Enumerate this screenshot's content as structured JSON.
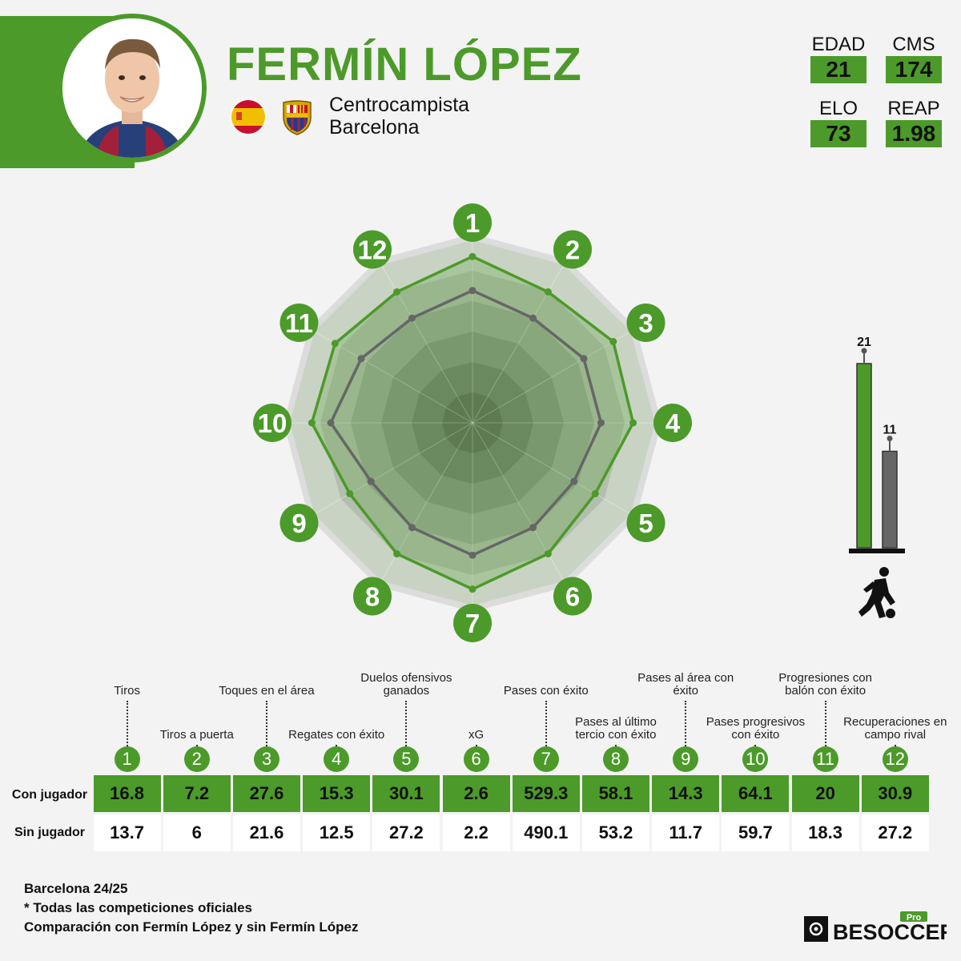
{
  "player": {
    "name": "FERMÍN LÓPEZ",
    "position": "Centrocampista",
    "club": "Barcelona"
  },
  "stats": [
    {
      "label": "EDAD",
      "value": "21"
    },
    {
      "label": "CMS",
      "value": "174"
    },
    {
      "label": "ELO",
      "value": "73"
    },
    {
      "label": "REAP",
      "value": "1.98"
    }
  ],
  "icons": {
    "flag": "spain-flag-icon",
    "crest": "barcelona-crest-icon",
    "player": "footballer-icon",
    "logo": "besoccer-pro-logo"
  },
  "colors": {
    "accent": "#4c9a2a",
    "with_player": "#4c9a2a",
    "without_player": "#666666"
  },
  "chart_data": [
    {
      "type": "radar",
      "axes": [
        "1",
        "2",
        "3",
        "4",
        "5",
        "6",
        "7",
        "8",
        "9",
        "10",
        "11",
        "12"
      ],
      "series": [
        {
          "name": "Con jugador",
          "values": [
            0.88,
            0.8,
            0.86,
            0.85,
            0.75,
            0.8,
            0.88,
            0.8,
            0.75,
            0.85,
            0.84,
            0.8
          ]
        },
        {
          "name": "Sin jugador",
          "values": [
            0.7,
            0.64,
            0.68,
            0.68,
            0.62,
            0.64,
            0.7,
            0.64,
            0.62,
            0.75,
            0.68,
            0.64
          ]
        }
      ],
      "rlim": [
        0,
        1
      ]
    },
    {
      "type": "bar",
      "categories": [
        "Con jugador",
        "Sin jugador"
      ],
      "values": [
        21,
        11
      ],
      "ylim": [
        0,
        21
      ]
    },
    {
      "type": "table",
      "columns": [
        {
          "num": "1",
          "label": "Tiros",
          "with": "16.8",
          "without": "13.7"
        },
        {
          "num": "2",
          "label": "Tiros a puerta",
          "with": "7.2",
          "without": "6"
        },
        {
          "num": "3",
          "label": "Toques en el área",
          "with": "27.6",
          "without": "21.6"
        },
        {
          "num": "4",
          "label": "Regates con éxito",
          "with": "15.3",
          "without": "12.5"
        },
        {
          "num": "5",
          "label": "Duelos ofensivos\nganados",
          "with": "30.1",
          "without": "27.2"
        },
        {
          "num": "6",
          "label": "xG",
          "with": "2.6",
          "without": "2.2"
        },
        {
          "num": "7",
          "label": "Pases con éxito",
          "with": "529.3",
          "without": "490.1"
        },
        {
          "num": "8",
          "label": "Pases al último\ntercio con éxito",
          "with": "58.1",
          "without": "53.2"
        },
        {
          "num": "9",
          "label": "Pases al área con\néxito",
          "with": "14.3",
          "without": "11.7"
        },
        {
          "num": "10",
          "label": "Pases progresivos\ncon éxito",
          "with": "64.1",
          "without": "59.7"
        },
        {
          "num": "11",
          "label": "Progresiones con\nbalón con éxito",
          "with": "20",
          "without": "18.3"
        },
        {
          "num": "12",
          "label": "Recuperaciones en\ncampo rival",
          "with": "30.9",
          "without": "27.2"
        }
      ],
      "row_labels": [
        "Con jugador",
        "Sin jugador"
      ]
    }
  ],
  "footer": {
    "lines": [
      "Barcelona 24/25",
      "* Todas las competiciones oficiales",
      "Comparación con Fermín López y sin Fermín López"
    ],
    "logo_text": "BESOCCER",
    "logo_badge": "Pro"
  }
}
